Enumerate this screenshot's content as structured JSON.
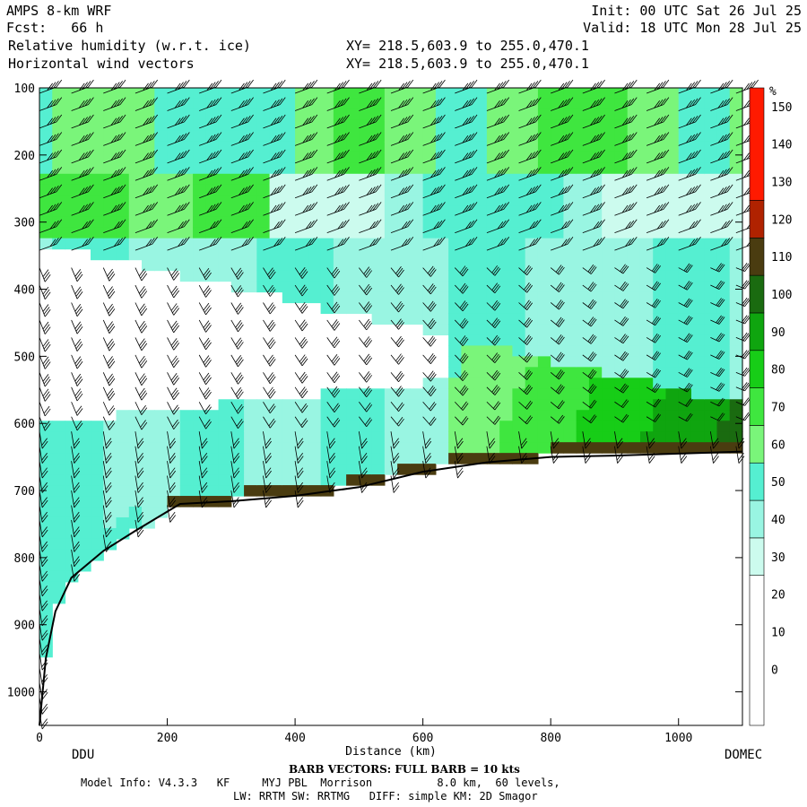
{
  "header": {
    "model": "AMPS 8-km WRF",
    "fcst": "Fcst:   66 h",
    "init": "Init: 00 UTC Sat 26 Jul 25",
    "valid": "Valid: 18 UTC Mon 28 Jul 25",
    "field1": "Relative humidity (w.r.t. ice)",
    "field2": "Horizontal wind vectors",
    "xy1": "XY= 218.5,603.9 to 255.0,470.1",
    "xy2": "XY= 218.5,603.9 to 255.0,470.1"
  },
  "footer": {
    "start_station": "DDU",
    "end_station": "DOMEC",
    "barb_note": "BARB VECTORS: FULL BARB = 10 kts",
    "model_info": "Model Info: V4.3.3   KF     MYJ PBL  Morrison          8.0 km,  60 levels,",
    "physics": "LW: RRTM SW: RRTMG   DIFF: simple KM: 2D Smagor"
  },
  "chart_data": {
    "type": "heatmap",
    "description_type": "vertical cross-section",
    "xlabel": "Distance (km)",
    "ylabel": "",
    "xlim": [
      0,
      1100
    ],
    "ylim": [
      1050,
      100
    ],
    "x_ticks": [
      0,
      200,
      400,
      600,
      800,
      1000
    ],
    "y_ticks": [
      100,
      200,
      300,
      400,
      500,
      600,
      700,
      800,
      900,
      1000
    ],
    "colorbar": {
      "unit": "%",
      "tick_labels": [
        0,
        10,
        20,
        30,
        40,
        50,
        60,
        70,
        80,
        90,
        100,
        110,
        120,
        130,
        140,
        150
      ],
      "levels": [
        {
          "min": -10,
          "max": 30,
          "color": "#ffffff"
        },
        {
          "min": 30,
          "max": 40,
          "color": "#ccfbee"
        },
        {
          "min": 40,
          "max": 50,
          "color": "#99f5e2"
        },
        {
          "min": 50,
          "max": 60,
          "color": "#55efd1"
        },
        {
          "min": 60,
          "max": 70,
          "color": "#7af57a"
        },
        {
          "min": 70,
          "max": 80,
          "color": "#3fe63f"
        },
        {
          "min": 80,
          "max": 90,
          "color": "#17cd17"
        },
        {
          "min": 90,
          "max": 100,
          "color": "#0fa50f"
        },
        {
          "min": 100,
          "max": 110,
          "color": "#1a6b10"
        },
        {
          "min": 110,
          "max": 120,
          "color": "#4a3c10"
        },
        {
          "min": 120,
          "max": 130,
          "color": "#b02200"
        },
        {
          "min": 130,
          "max": 160,
          "color": "#ff1a00"
        }
      ]
    },
    "terrain_surface": [
      {
        "x": 0,
        "p": 1050
      },
      {
        "x": 10,
        "p": 950
      },
      {
        "x": 25,
        "p": 880
      },
      {
        "x": 50,
        "p": 830
      },
      {
        "x": 100,
        "p": 790
      },
      {
        "x": 150,
        "p": 760
      },
      {
        "x": 220,
        "p": 720
      },
      {
        "x": 300,
        "p": 716
      },
      {
        "x": 400,
        "p": 708
      },
      {
        "x": 500,
        "p": 695
      },
      {
        "x": 600,
        "p": 672
      },
      {
        "x": 700,
        "p": 658
      },
      {
        "x": 800,
        "p": 650
      },
      {
        "x": 900,
        "p": 648
      },
      {
        "x": 1000,
        "p": 645
      },
      {
        "x": 1100,
        "p": 642
      }
    ],
    "rh_regions": [
      {
        "name": "upper-moist-layer",
        "rh_approx": 60,
        "p_top": 100,
        "p_bottom": 220
      },
      {
        "name": "upper-core",
        "rh_approx": 75,
        "p_top": 240,
        "p_bottom": 320,
        "x_min": 0,
        "x_max": 350
      },
      {
        "name": "mid-dry-zone",
        "rh_approx": 20,
        "p_top": 330,
        "p_bottom": 620,
        "x_min": 0,
        "x_max": 700
      },
      {
        "name": "low-moist-layer",
        "rh_approx": 55,
        "p_top": 600,
        "p_bottom": 700
      },
      {
        "name": "plateau-moist-column",
        "rh_approx": 85,
        "p_top": 350,
        "p_bottom": 650,
        "x_min": 750,
        "x_max": 1100
      }
    ],
    "wind_barb_columns_x": [
      0,
      50,
      100,
      150,
      200,
      250,
      300,
      350,
      400,
      450,
      500,
      550,
      600,
      650,
      700,
      750,
      800,
      850,
      900,
      950,
      1000,
      1050,
      1090
    ]
  }
}
